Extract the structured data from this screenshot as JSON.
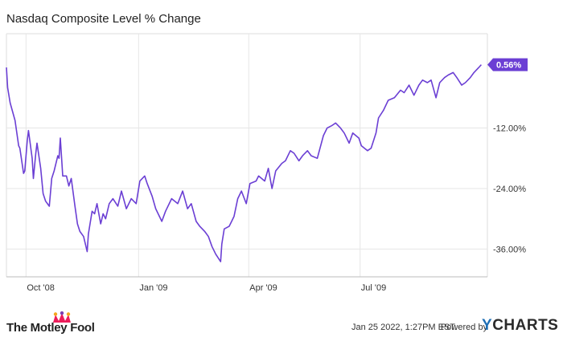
{
  "chart_data": {
    "type": "line",
    "title": "Nasdaq Composite Level % Change",
    "xlabel": "",
    "ylabel": "",
    "x_tick_labels": [
      "Oct '08",
      "Jan '09",
      "Apr '09",
      "Jul '09"
    ],
    "x_ticks": [
      "2008-10-01",
      "2009-01-01",
      "2009-04-01",
      "2009-07-01"
    ],
    "x_range": [
      "2008-09-15",
      "2009-10-13"
    ],
    "y_ticks": [
      -12.0,
      -24.0,
      -36.0
    ],
    "y_tick_labels": [
      "-12.00%",
      "-24.00%",
      "-36.00%"
    ],
    "ylim": [
      -41.5,
      6.7
    ],
    "grid": true,
    "last_value_label": "0.56%",
    "series": [
      {
        "color": "#6b3fd4",
        "points": [
          [
            "2008-09-15",
            0.0
          ],
          [
            "2008-09-16",
            -4.0
          ],
          [
            "2008-09-18",
            -7.0
          ],
          [
            "2008-09-22",
            -10.5
          ],
          [
            "2008-09-25",
            -15.5
          ],
          [
            "2008-09-26",
            -16.0
          ],
          [
            "2008-09-29",
            -21.0
          ],
          [
            "2008-09-30",
            -20.5
          ],
          [
            "2008-10-02",
            -14.5
          ],
          [
            "2008-10-03",
            -12.5
          ],
          [
            "2008-10-06",
            -18.0
          ],
          [
            "2008-10-07",
            -22.0
          ],
          [
            "2008-10-09",
            -17.0
          ],
          [
            "2008-10-10",
            -15.0
          ],
          [
            "2008-10-13",
            -20.0
          ],
          [
            "2008-10-15",
            -25.0
          ],
          [
            "2008-10-17",
            -26.5
          ],
          [
            "2008-10-20",
            -27.5
          ],
          [
            "2008-10-22",
            -22.0
          ],
          [
            "2008-10-24",
            -20.5
          ],
          [
            "2008-10-27",
            -17.5
          ],
          [
            "2008-10-28",
            -18.0
          ],
          [
            "2008-10-29",
            -14.0
          ],
          [
            "2008-10-31",
            -21.5
          ],
          [
            "2008-11-03",
            -21.5
          ],
          [
            "2008-11-05",
            -23.5
          ],
          [
            "2008-11-07",
            -22.0
          ],
          [
            "2008-11-10",
            -27.5
          ],
          [
            "2008-11-12",
            -31.0
          ],
          [
            "2008-11-14",
            -32.5
          ],
          [
            "2008-11-17",
            -33.5
          ],
          [
            "2008-11-20",
            -36.5
          ],
          [
            "2008-11-21",
            -33.0
          ],
          [
            "2008-11-24",
            -28.5
          ],
          [
            "2008-11-26",
            -29.0
          ],
          [
            "2008-11-28",
            -27.0
          ],
          [
            "2008-12-01",
            -31.0
          ],
          [
            "2008-12-03",
            -29.0
          ],
          [
            "2008-12-05",
            -30.0
          ],
          [
            "2008-12-08",
            -27.0
          ],
          [
            "2008-12-11",
            -26.0
          ],
          [
            "2008-12-15",
            -27.5
          ],
          [
            "2008-12-18",
            -24.5
          ],
          [
            "2008-12-22",
            -28.0
          ],
          [
            "2008-12-26",
            -26.0
          ],
          [
            "2008-12-30",
            -27.0
          ],
          [
            "2009-01-02",
            -22.5
          ],
          [
            "2009-01-06",
            -21.5
          ],
          [
            "2009-01-08",
            -23.0
          ],
          [
            "2009-01-12",
            -25.5
          ],
          [
            "2009-01-15",
            -28.0
          ],
          [
            "2009-01-20",
            -30.5
          ],
          [
            "2009-01-23",
            -28.5
          ],
          [
            "2009-01-28",
            -26.0
          ],
          [
            "2009-02-02",
            -27.0
          ],
          [
            "2009-02-06",
            -24.5
          ],
          [
            "2009-02-10",
            -28.0
          ],
          [
            "2009-02-13",
            -27.0
          ],
          [
            "2009-02-17",
            -30.5
          ],
          [
            "2009-02-20",
            -31.5
          ],
          [
            "2009-02-24",
            -32.5
          ],
          [
            "2009-02-27",
            -33.5
          ],
          [
            "2009-03-02",
            -35.5
          ],
          [
            "2009-03-05",
            -37.0
          ],
          [
            "2009-03-09",
            -38.5
          ],
          [
            "2009-03-10",
            -35.0
          ],
          [
            "2009-03-12",
            -32.0
          ],
          [
            "2009-03-16",
            -31.5
          ],
          [
            "2009-03-18",
            -30.5
          ],
          [
            "2009-03-20",
            -29.5
          ],
          [
            "2009-03-23",
            -26.0
          ],
          [
            "2009-03-26",
            -24.5
          ],
          [
            "2009-03-30",
            -27.0
          ],
          [
            "2009-04-02",
            -23.0
          ],
          [
            "2009-04-07",
            -22.5
          ],
          [
            "2009-04-09",
            -21.5
          ],
          [
            "2009-04-14",
            -22.5
          ],
          [
            "2009-04-17",
            -20.0
          ],
          [
            "2009-04-20",
            -24.0
          ],
          [
            "2009-04-23",
            -20.5
          ],
          [
            "2009-04-28",
            -19.0
          ],
          [
            "2009-05-01",
            -18.5
          ],
          [
            "2009-05-05",
            -16.5
          ],
          [
            "2009-05-08",
            -17.0
          ],
          [
            "2009-05-12",
            -18.5
          ],
          [
            "2009-05-15",
            -17.5
          ],
          [
            "2009-05-19",
            -16.5
          ],
          [
            "2009-05-22",
            -17.5
          ],
          [
            "2009-05-27",
            -18.0
          ],
          [
            "2009-06-01",
            -13.5
          ],
          [
            "2009-06-04",
            -12.0
          ],
          [
            "2009-06-08",
            -11.5
          ],
          [
            "2009-06-11",
            -11.0
          ],
          [
            "2009-06-15",
            -12.0
          ],
          [
            "2009-06-18",
            -13.0
          ],
          [
            "2009-06-22",
            -15.0
          ],
          [
            "2009-06-25",
            -13.0
          ],
          [
            "2009-06-30",
            -14.0
          ],
          [
            "2009-07-02",
            -15.5
          ],
          [
            "2009-07-07",
            -16.5
          ],
          [
            "2009-07-10",
            -16.0
          ],
          [
            "2009-07-14",
            -13.0
          ],
          [
            "2009-07-16",
            -10.0
          ],
          [
            "2009-07-20",
            -8.5
          ],
          [
            "2009-07-24",
            -6.5
          ],
          [
            "2009-07-29",
            -6.0
          ],
          [
            "2009-08-03",
            -4.5
          ],
          [
            "2009-08-06",
            -5.0
          ],
          [
            "2009-08-10",
            -3.5
          ],
          [
            "2009-08-14",
            -5.5
          ],
          [
            "2009-08-18",
            -3.5
          ],
          [
            "2009-08-21",
            -2.5
          ],
          [
            "2009-08-25",
            -3.0
          ],
          [
            "2009-08-28",
            -2.5
          ],
          [
            "2009-09-01",
            -6.0
          ],
          [
            "2009-09-04",
            -3.0
          ],
          [
            "2009-09-08",
            -2.0
          ],
          [
            "2009-09-11",
            -1.5
          ],
          [
            "2009-09-15",
            -1.0
          ],
          [
            "2009-09-18",
            -2.0
          ],
          [
            "2009-09-22",
            -3.5
          ],
          [
            "2009-09-25",
            -3.0
          ],
          [
            "2009-09-29",
            -2.0
          ],
          [
            "2009-10-02",
            -1.0
          ],
          [
            "2009-10-06",
            0.0
          ],
          [
            "2009-10-08",
            0.56
          ]
        ]
      }
    ]
  },
  "footer": {
    "brand": "The Motley Fool",
    "timestamp": "Jan 25 2022, 1:27PM EST.",
    "powered_by": "Powered by",
    "ycharts_y": "Y",
    "ycharts_rest": "CHARTS"
  }
}
